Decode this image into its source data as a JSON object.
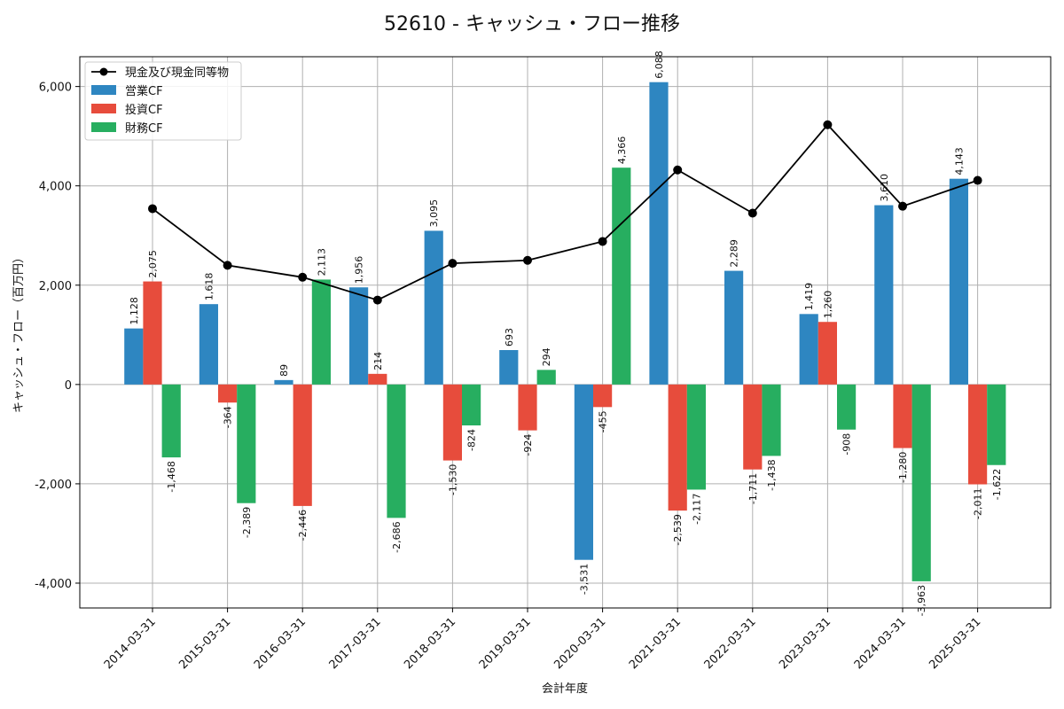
{
  "chart_data": {
    "type": "bar",
    "title": "52610 - キャッシュ・フロー推移",
    "xlabel": "会計年度",
    "ylabel": "キャッシュ・フロー（百万円）",
    "categories": [
      "2014-03-31",
      "2015-03-31",
      "2016-03-31",
      "2017-03-31",
      "2018-03-31",
      "2019-03-31",
      "2020-03-31",
      "2021-03-31",
      "2022-03-31",
      "2023-03-31",
      "2024-03-31",
      "2025-03-31"
    ],
    "ylim": [
      -4500,
      6600
    ],
    "yticks": [
      -4000,
      -2000,
      0,
      2000,
      4000,
      6000
    ],
    "ytick_labels": [
      "-4,000",
      "-2,000",
      "0",
      "2,000",
      "4,000",
      "6,000"
    ],
    "grid": true,
    "legend_position": "top-left",
    "series": [
      {
        "name": "営業CF",
        "color": "#2e86c1",
        "values": [
          1128,
          1618,
          89,
          1956,
          3095,
          693,
          -3531,
          6088,
          2289,
          1419,
          3610,
          4143
        ],
        "labels": [
          "1,128",
          "1,618",
          "89",
          "1,956",
          "3,095",
          "693",
          "-3,531",
          "6,088",
          "2,289",
          "1,419",
          "3,610",
          "4,143"
        ]
      },
      {
        "name": "投資CF",
        "color": "#e74c3c",
        "values": [
          2075,
          -364,
          -2446,
          214,
          -1530,
          -924,
          -455,
          -2539,
          -1711,
          1260,
          -1280,
          -2011
        ],
        "labels": [
          "2,075",
          "-364",
          "-2,446",
          "214",
          "-1,530",
          "-924",
          "-455",
          "-2,539",
          "-1,711",
          "1,260",
          "-1,280",
          "-2,011"
        ]
      },
      {
        "name": "財務CF",
        "color": "#27ae60",
        "values": [
          -1468,
          -2389,
          2113,
          -2686,
          -824,
          294,
          4366,
          -2117,
          -1438,
          -908,
          -3963,
          -1622
        ],
        "labels": [
          "-1,468",
          "-2,389",
          "2,113",
          "-2,686",
          "-824",
          "294",
          "4,366",
          "-2,117",
          "-1,438",
          "-908",
          "-3,963",
          "-1,622"
        ]
      }
    ],
    "line_series": {
      "name": "現金及び現金同等物",
      "color": "#000000",
      "values": [
        3540,
        2400,
        2160,
        1700,
        2440,
        2500,
        2880,
        4320,
        3450,
        5230,
        3590,
        4110
      ]
    }
  }
}
